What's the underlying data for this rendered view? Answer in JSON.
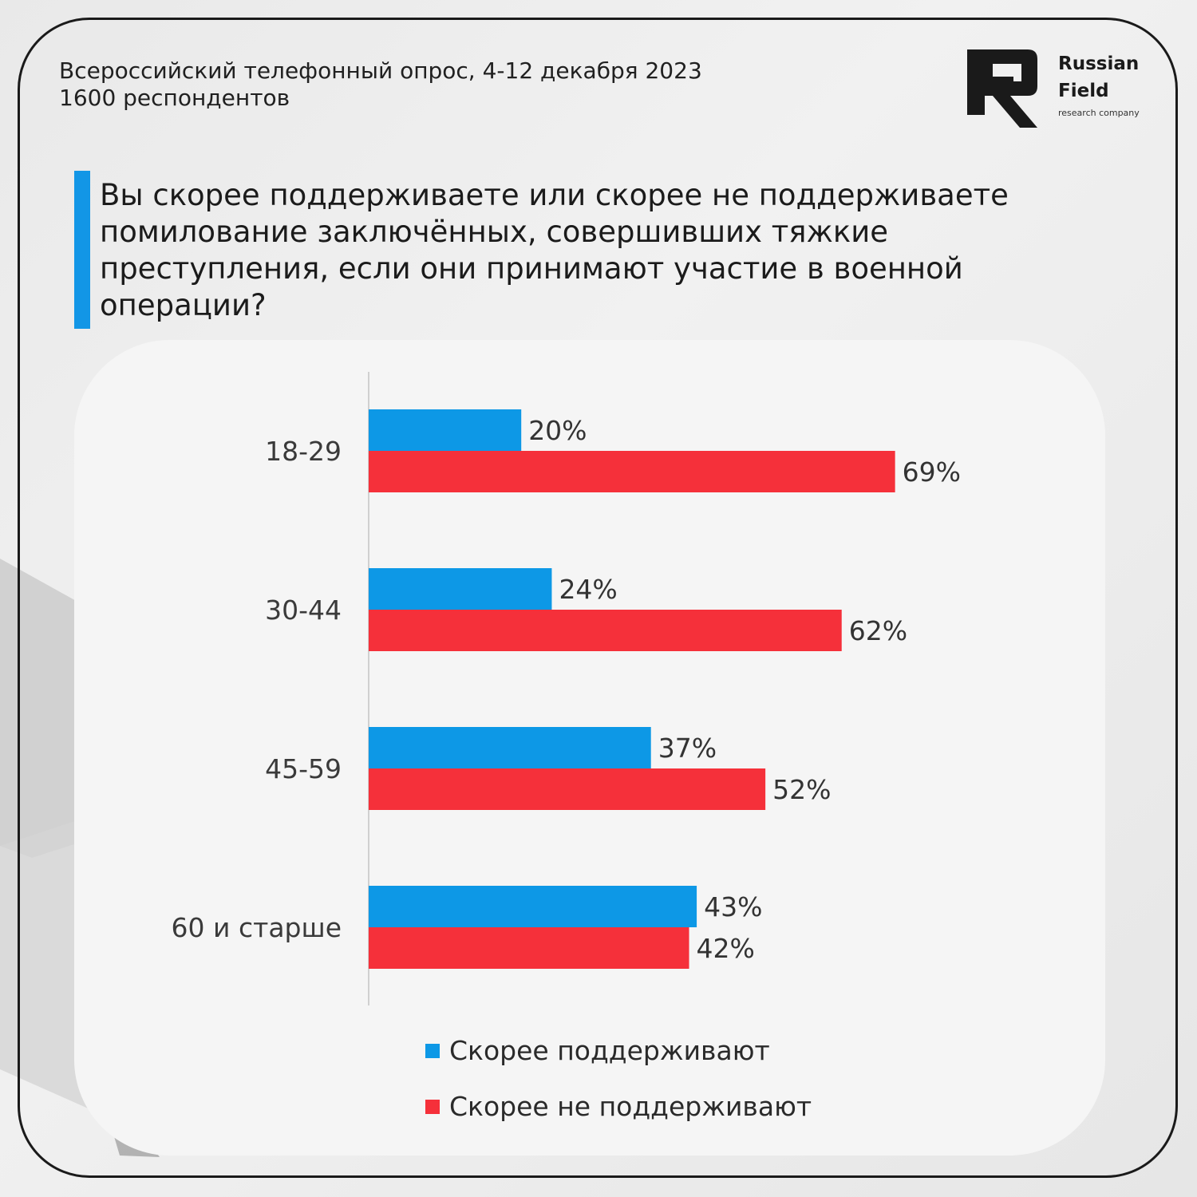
{
  "header": {
    "survey_line": "Всероссийский телефонный опрос, 4-12 декабря 2023",
    "respondents_line": "1600 респондентов"
  },
  "logo": {
    "name_line1": "Russian",
    "name_line2": "Field",
    "tagline": "research company"
  },
  "question": "Вы скорее поддерживаете или скорее не поддерживаете помилование заключённых, совершивших тяжкие преступления, если они принимают участие в военной операции?",
  "colors": {
    "support": "#0d98e6",
    "oppose": "#f5303a",
    "accent": "#1296e6"
  },
  "chart_data": {
    "type": "bar",
    "orientation": "horizontal",
    "categories": [
      "18-29",
      "30-44",
      "45-59",
      "60 и старше"
    ],
    "series": [
      {
        "name": "Скорее поддерживают",
        "values": [
          20,
          24,
          37,
          43
        ],
        "labels": [
          "20%",
          "24%",
          "37%",
          "43%"
        ]
      },
      {
        "name": "Скорее не поддерживают",
        "values": [
          69,
          62,
          52,
          42
        ],
        "labels": [
          "69%",
          "62%",
          "52%",
          "42%"
        ]
      }
    ],
    "xlim": [
      0,
      100
    ],
    "grid": false,
    "legend_position": "bottom"
  }
}
